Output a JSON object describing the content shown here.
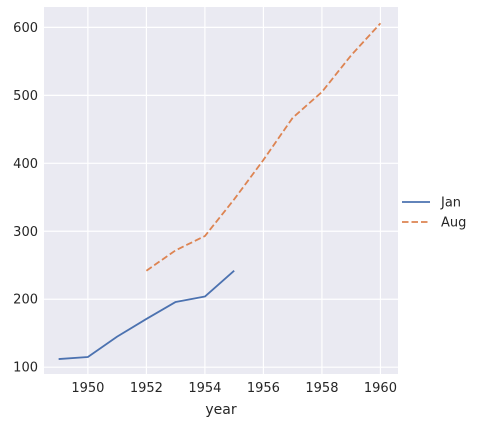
{
  "chart_data": {
    "type": "line",
    "xlabel": "year",
    "ylabel": "",
    "xlim": [
      1948.5,
      1960.6
    ],
    "ylim": [
      90,
      630
    ],
    "xticks": [
      1950,
      1952,
      1954,
      1956,
      1958,
      1960
    ],
    "yticks": [
      100,
      200,
      300,
      400,
      500,
      600
    ],
    "grid": true,
    "legend_position": "right",
    "colors": {
      "background": "#eaeaf2",
      "grid": "#ffffff",
      "text": "#262626"
    },
    "series": [
      {
        "name": "Jan",
        "color": "#4c72b0",
        "dash": "solid",
        "points": [
          {
            "x": 1949,
            "y": 112
          },
          {
            "x": 1950,
            "y": 115
          },
          {
            "x": 1951,
            "y": 145
          },
          {
            "x": 1952,
            "y": 171
          },
          {
            "x": 1953,
            "y": 196
          },
          {
            "x": 1954,
            "y": 204
          },
          {
            "x": 1955,
            "y": 242
          }
        ]
      },
      {
        "name": "Aug",
        "color": "#dd8452",
        "dash": "dashed",
        "points": [
          {
            "x": 1952,
            "y": 242
          },
          {
            "x": 1953,
            "y": 272
          },
          {
            "x": 1954,
            "y": 293
          },
          {
            "x": 1955,
            "y": 347
          },
          {
            "x": 1956,
            "y": 405
          },
          {
            "x": 1957,
            "y": 467
          },
          {
            "x": 1958,
            "y": 505
          },
          {
            "x": 1959,
            "y": 559
          },
          {
            "x": 1960,
            "y": 606
          }
        ]
      }
    ]
  }
}
